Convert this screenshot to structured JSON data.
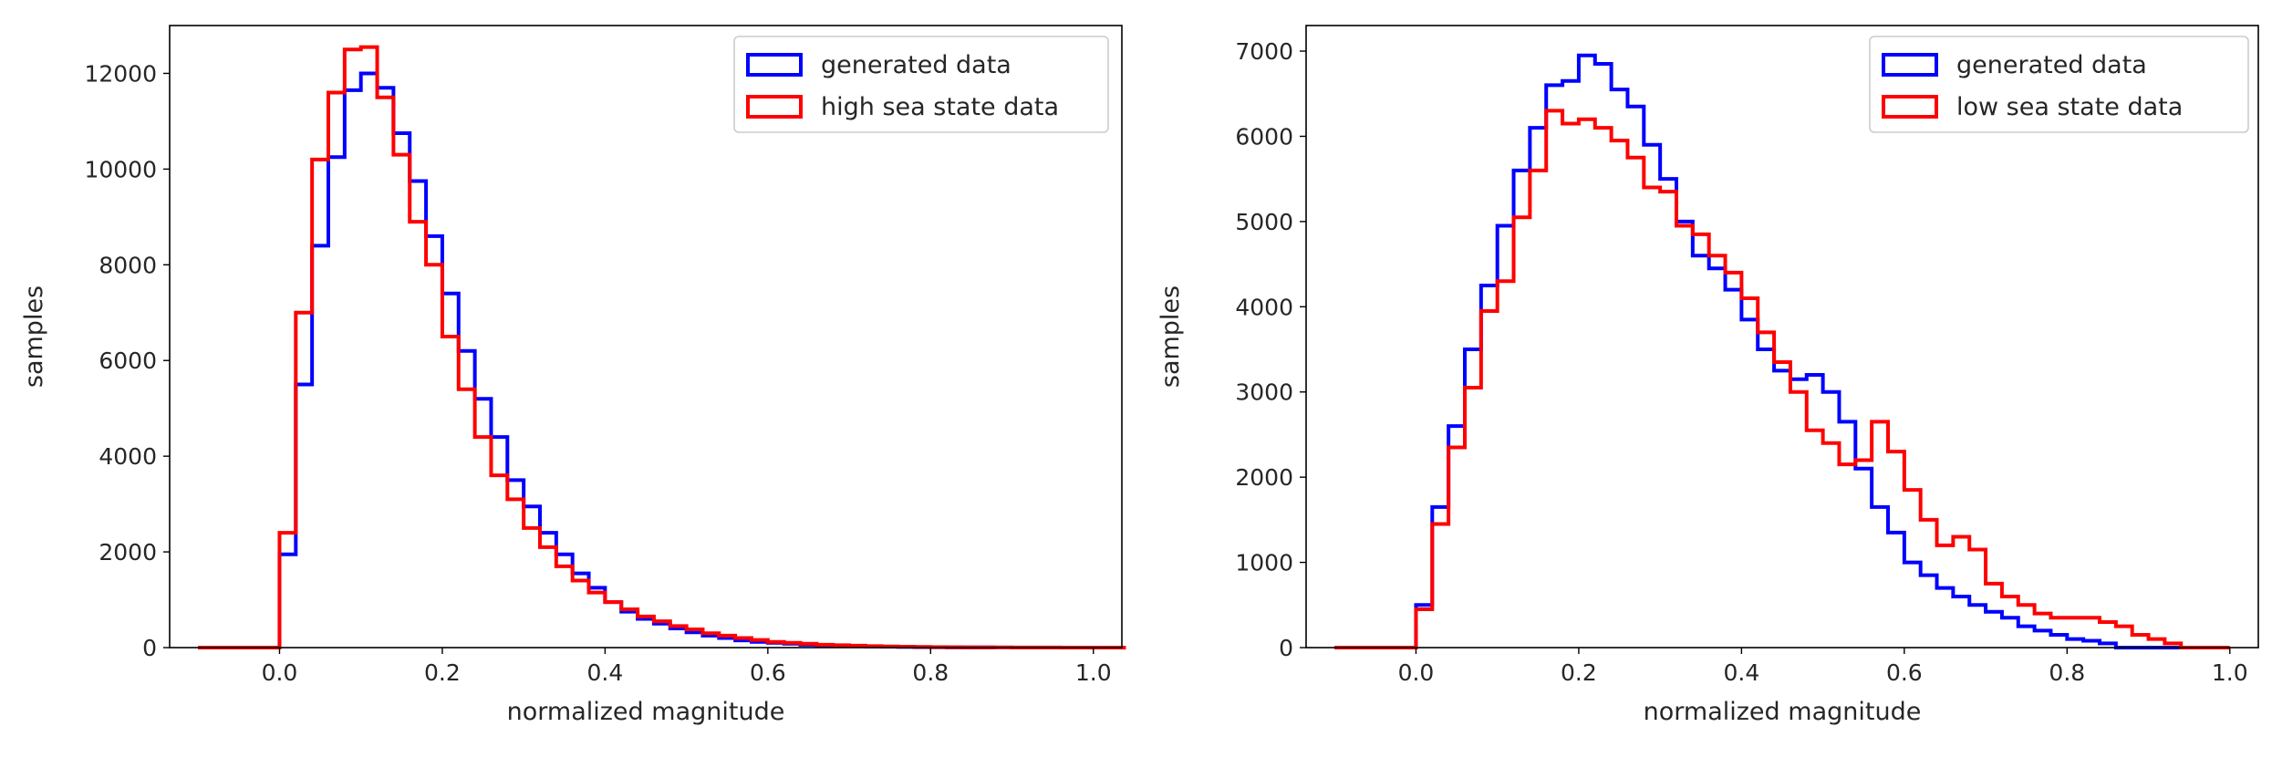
{
  "chart_data": [
    {
      "type": "histogram",
      "xlabel": "normalized magnitude",
      "ylabel": "samples",
      "xlim": [
        -0.135,
        1.035
      ],
      "ylim": [
        0,
        13000
      ],
      "x_ticks": [
        "0.0",
        "0.2",
        "0.4",
        "0.6",
        "0.8",
        "1.0"
      ],
      "x_tick_values": [
        0.0,
        0.2,
        0.4,
        0.6,
        0.8,
        1.0
      ],
      "y_ticks": [
        "0",
        "2000",
        "4000",
        "6000",
        "8000",
        "10000",
        "12000"
      ],
      "y_tick_values": [
        0,
        2000,
        4000,
        6000,
        8000,
        10000,
        12000
      ],
      "grid": false,
      "legend_position": "top-right",
      "bin_width": 0.02,
      "series": [
        {
          "name": "generated data",
          "color": "#0000ff",
          "bin_start": -0.1,
          "values": [
            0,
            0,
            0,
            0,
            0,
            1950,
            5500,
            8400,
            10250,
            11650,
            12000,
            11700,
            10750,
            9750,
            8600,
            7400,
            6200,
            5200,
            4400,
            3500,
            2950,
            2400,
            1950,
            1550,
            1250,
            950,
            750,
            600,
            500,
            400,
            320,
            250,
            200,
            150,
            120,
            100,
            80,
            60,
            50,
            40,
            30,
            25,
            20,
            15,
            10,
            8,
            6,
            5,
            4
          ]
        },
        {
          "name": "high sea state data",
          "color": "#ff0000",
          "bin_start": -0.1,
          "values": [
            0,
            0,
            0,
            0,
            0,
            2400,
            7000,
            10200,
            11600,
            12500,
            12550,
            11500,
            10300,
            8900,
            8000,
            6500,
            5400,
            4400,
            3600,
            3100,
            2500,
            2100,
            1700,
            1400,
            1150,
            950,
            800,
            650,
            550,
            450,
            380,
            300,
            250,
            200,
            160,
            120,
            100,
            80,
            60,
            50,
            40,
            30,
            25,
            20,
            15,
            10,
            8,
            6,
            5,
            4,
            3,
            2,
            2,
            1,
            1,
            1,
            0
          ]
        }
      ]
    },
    {
      "type": "histogram",
      "xlabel": "normalized magnitude",
      "ylabel": "samples",
      "xlim": [
        -0.135,
        1.035
      ],
      "ylim": [
        0,
        7300
      ],
      "x_ticks": [
        "0.0",
        "0.2",
        "0.4",
        "0.6",
        "0.8",
        "1.0"
      ],
      "x_tick_values": [
        0.0,
        0.2,
        0.4,
        0.6,
        0.8,
        1.0
      ],
      "y_ticks": [
        "0",
        "1000",
        "2000",
        "3000",
        "4000",
        "5000",
        "6000",
        "7000"
      ],
      "y_tick_values": [
        0,
        1000,
        2000,
        3000,
        4000,
        5000,
        6000,
        7000
      ],
      "grid": false,
      "legend_position": "top-right",
      "bin_width": 0.02,
      "series": [
        {
          "name": "generated data",
          "color": "#0000ff",
          "bin_start": -0.1,
          "values": [
            0,
            0,
            0,
            0,
            0,
            500,
            1650,
            2600,
            3500,
            4250,
            4950,
            5600,
            6100,
            6600,
            6650,
            6950,
            6850,
            6550,
            6350,
            5900,
            5500,
            5000,
            4600,
            4450,
            4200,
            3850,
            3500,
            3250,
            3150,
            3200,
            3000,
            2650,
            2100,
            1650,
            1350,
            1000,
            850,
            700,
            600,
            500,
            420,
            350,
            250,
            200,
            150,
            100,
            80,
            50,
            0,
            0,
            0,
            0,
            0,
            0
          ]
        },
        {
          "name": "low sea state data",
          "color": "#ff0000",
          "bin_start": -0.1,
          "values": [
            0,
            0,
            0,
            0,
            0,
            450,
            1450,
            2350,
            3050,
            3950,
            4300,
            5050,
            5600,
            6300,
            6150,
            6200,
            6100,
            5950,
            5750,
            5400,
            5350,
            4950,
            4850,
            4600,
            4400,
            4100,
            3700,
            3350,
            3000,
            2550,
            2400,
            2150,
            2200,
            2650,
            2300,
            1850,
            1500,
            1200,
            1300,
            1150,
            750,
            600,
            500,
            400,
            350,
            350,
            350,
            300,
            250,
            150,
            100,
            50,
            0,
            0,
            0
          ]
        }
      ]
    }
  ]
}
